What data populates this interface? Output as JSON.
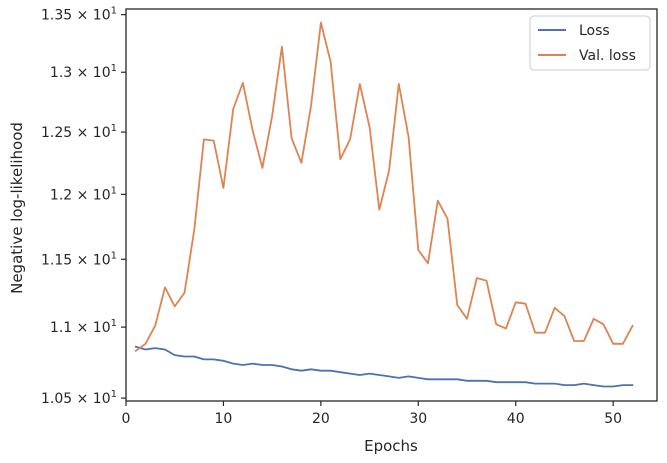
{
  "chart_data": {
    "type": "line",
    "xlabel": "Epochs",
    "ylabel": "Negative log-likelihood",
    "xlim": [
      0,
      54.5
    ],
    "ylim": [
      10.48,
      13.55
    ],
    "yscale": "log",
    "x_ticks": [
      0,
      10,
      20,
      30,
      40,
      50
    ],
    "y_ticks": [
      {
        "value": 10.5,
        "mantissa": "1.05"
      },
      {
        "value": 11.0,
        "mantissa": "1.1"
      },
      {
        "value": 11.5,
        "mantissa": "1.15"
      },
      {
        "value": 12.0,
        "mantissa": "1.2"
      },
      {
        "value": 12.5,
        "mantissa": "1.25"
      },
      {
        "value": 13.0,
        "mantissa": "1.3"
      },
      {
        "value": 13.5,
        "mantissa": "1.35"
      }
    ],
    "y_tick_multiplier": "× 10",
    "y_tick_exponent": "1",
    "grid": false,
    "legend_position": "top-right",
    "x": [
      1,
      2,
      3,
      4,
      5,
      6,
      7,
      8,
      9,
      10,
      11,
      12,
      13,
      14,
      15,
      16,
      17,
      18,
      19,
      20,
      21,
      22,
      23,
      24,
      25,
      26,
      27,
      28,
      29,
      30,
      31,
      32,
      33,
      34,
      35,
      36,
      37,
      38,
      39,
      40,
      41,
      42,
      43,
      44,
      45,
      46,
      47,
      48,
      49,
      50,
      51,
      52
    ],
    "series": [
      {
        "name": "Loss",
        "color": "#4c72b0",
        "values": [
          10.86,
          10.84,
          10.85,
          10.84,
          10.8,
          10.79,
          10.79,
          10.77,
          10.77,
          10.76,
          10.74,
          10.73,
          10.74,
          10.73,
          10.73,
          10.72,
          10.7,
          10.69,
          10.7,
          10.69,
          10.69,
          10.68,
          10.67,
          10.66,
          10.67,
          10.66,
          10.65,
          10.64,
          10.65,
          10.64,
          10.63,
          10.63,
          10.63,
          10.63,
          10.62,
          10.62,
          10.62,
          10.61,
          10.61,
          10.61,
          10.61,
          10.6,
          10.6,
          10.6,
          10.59,
          10.59,
          10.6,
          10.59,
          10.58,
          10.58,
          10.59,
          10.59
        ]
      },
      {
        "name": "Val. loss",
        "color": "#dd8452",
        "values": [
          10.83,
          10.88,
          11.01,
          11.29,
          11.15,
          11.25,
          11.72,
          12.44,
          12.43,
          12.05,
          12.69,
          12.91,
          12.51,
          12.21,
          12.63,
          13.22,
          12.45,
          12.25,
          12.72,
          13.43,
          13.09,
          12.28,
          12.44,
          12.9,
          12.54,
          11.88,
          12.19,
          12.9,
          12.46,
          11.57,
          11.47,
          11.95,
          11.81,
          11.16,
          11.06,
          11.36,
          11.34,
          11.02,
          10.99,
          11.18,
          11.17,
          10.96,
          10.96,
          11.14,
          11.08,
          10.9,
          10.9,
          11.06,
          11.02,
          10.88,
          10.88,
          11.01
        ]
      }
    ]
  }
}
